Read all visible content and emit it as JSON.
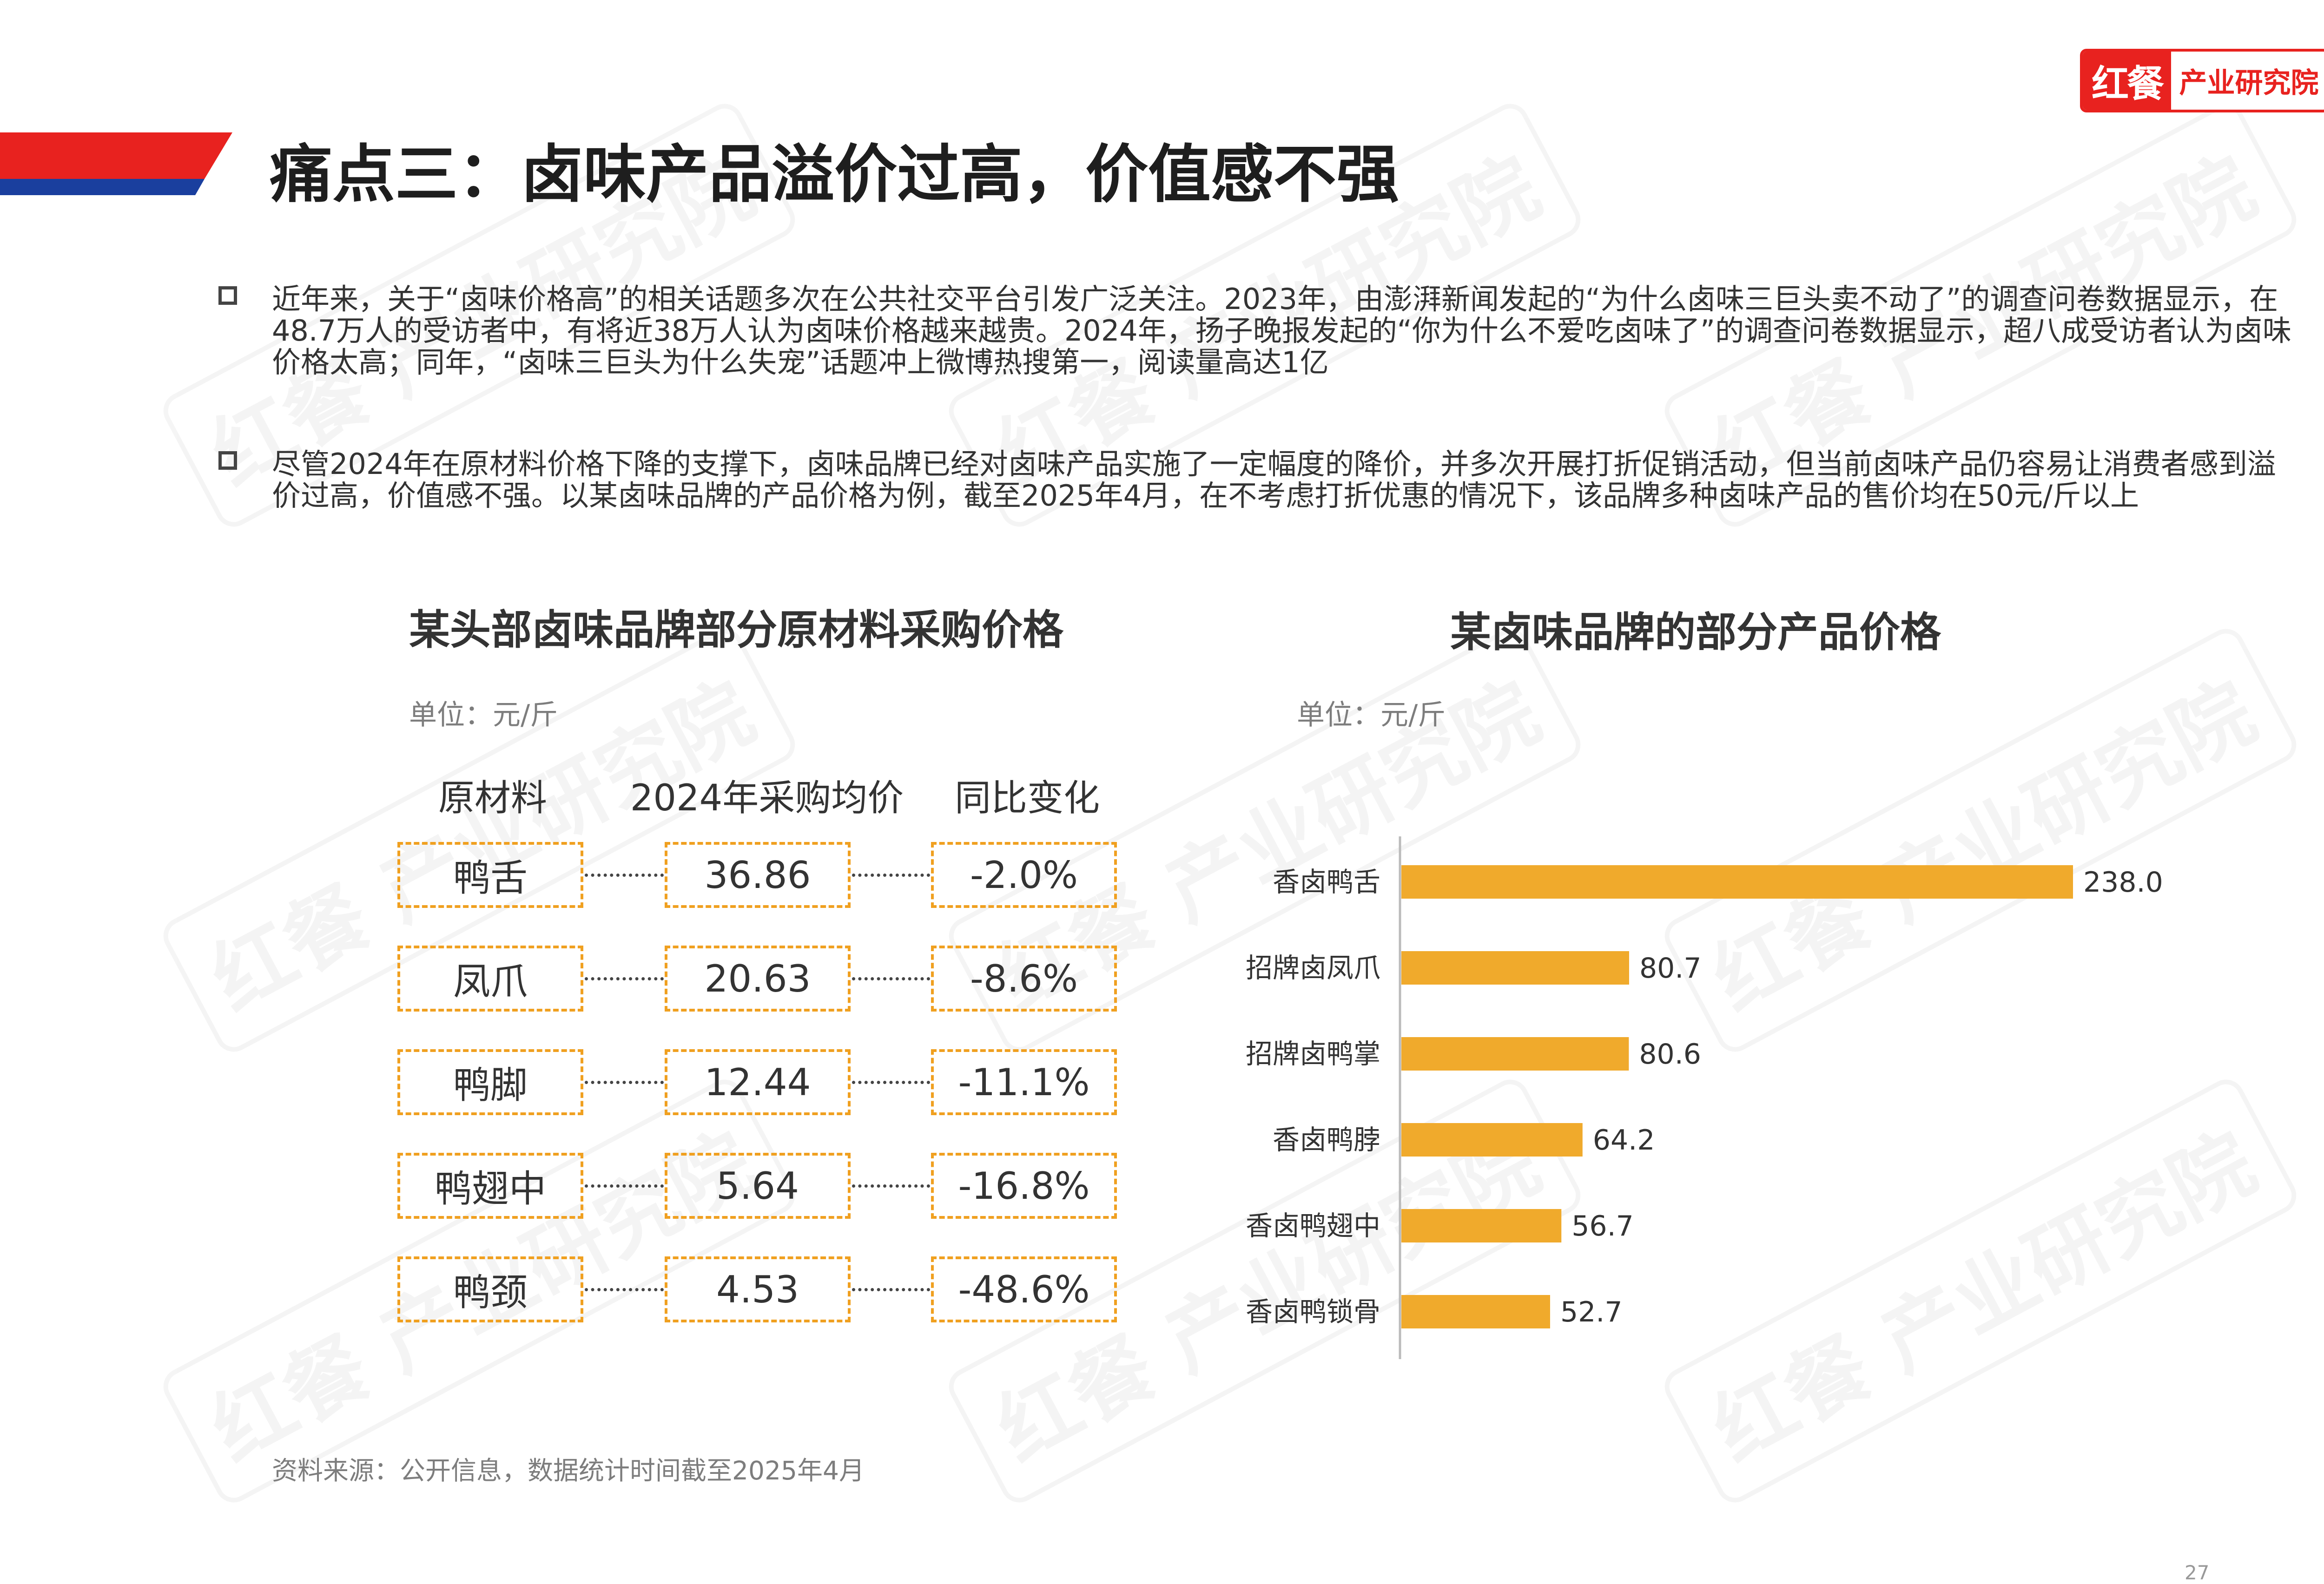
{
  "brand": {
    "logo_mark": "红餐",
    "logo_text": "产业研究院",
    "watermark": "红餐 产业研究院"
  },
  "title": "痛点三：卤味产品溢价过高，价值感不强",
  "bullets": [
    "近年来，关于“卤味价格高”的相关话题多次在公共社交平台引发广泛关注。2023年，由澎湃新闻发起的“为什么卤味三巨头卖不动了”的调查问卷数据显示，在48.7万人的受访者中，有将近38万人认为卤味价格越来越贵。2024年，扬子晚报发起的“你为什么不爱吃卤味了”的调查问卷数据显示，超八成受访者认为卤味价格太高；同年，“卤味三巨头为什么失宠”话题冲上微博热搜第一，阅读量高达1亿",
    "尽管2024年在原材料价格下降的支撑下，卤味品牌已经对卤味产品实施了一定幅度的降价，并多次开展打折促销活动，但当前卤味产品仍容易让消费者感到溢价过高，价值感不强。以某卤味品牌的产品价格为例，截至2025年4月，在不考虑打折优惠的情况下，该品牌多种卤味产品的售价均在50元/斤以上"
  ],
  "left_table": {
    "title": "某头部卤味品牌部分原材料采购价格",
    "unit": "单位：元/斤",
    "headers": [
      "原材料",
      "2024年采购均价",
      "同比变化"
    ],
    "rows": [
      {
        "material": "鸭舌",
        "price": "36.86",
        "change": "-2.0%"
      },
      {
        "material": "凤爪",
        "price": "20.63",
        "change": "-8.6%"
      },
      {
        "material": "鸭脚",
        "price": "12.44",
        "change": "-11.1%"
      },
      {
        "material": "鸭翅中",
        "price": "5.64",
        "change": "-16.8%"
      },
      {
        "material": "鸭颈",
        "price": "4.53",
        "change": "-48.6%"
      }
    ]
  },
  "chart_data": {
    "type": "bar",
    "orientation": "horizontal",
    "title": "某卤味品牌的部分产品价格",
    "unit": "单位：元/斤",
    "categories": [
      "香卤鸭舌",
      "招牌卤凤爪",
      "招牌卤鸭掌",
      "香卤鸭脖",
      "香卤鸭翅中",
      "香卤鸭锁骨"
    ],
    "values": [
      238.0,
      80.7,
      80.6,
      64.2,
      56.7,
      52.7
    ],
    "value_labels": [
      "238.0",
      "80.7",
      "80.6",
      "64.2",
      "56.7",
      "52.7"
    ],
    "bar_color": "#f0aa2c",
    "xlim": [
      0,
      238
    ],
    "grid": false
  },
  "source": "资料来源：公开信息，数据统计时间截至2025年4月",
  "page_number": "27",
  "colors": {
    "red": "#e8221f",
    "blue": "#1a3f9e",
    "orange": "#f0aa2c"
  }
}
